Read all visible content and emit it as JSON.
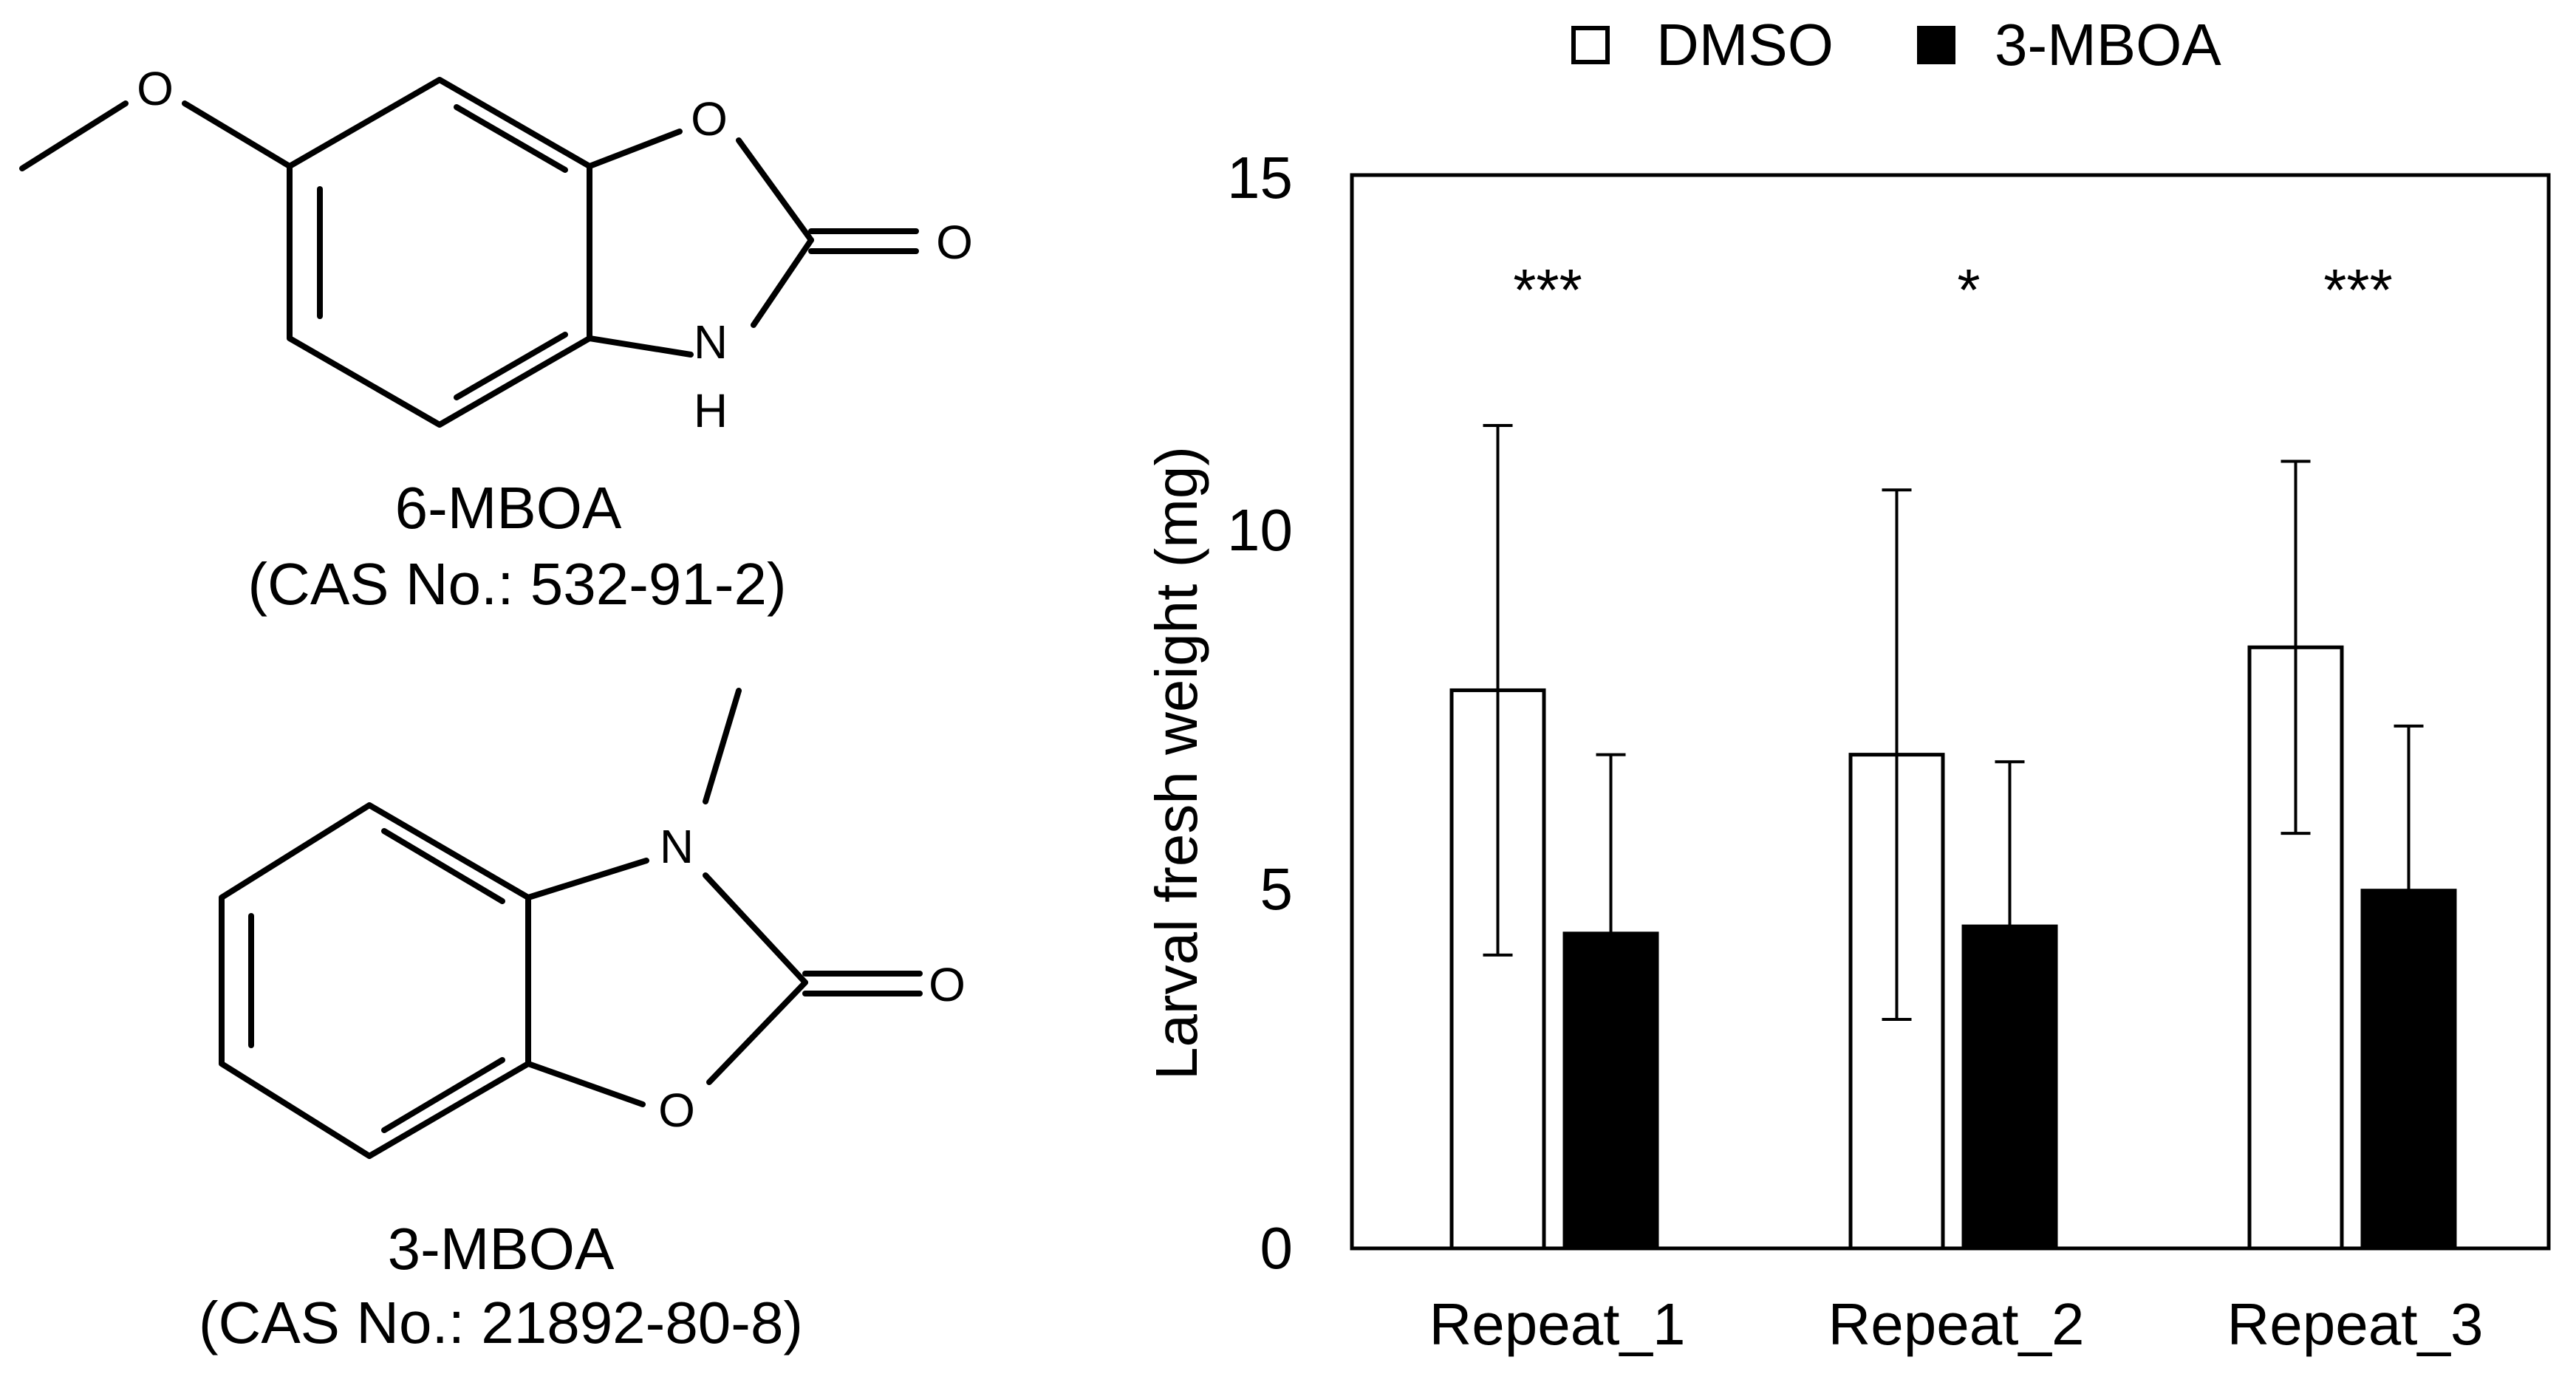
{
  "compounds": [
    {
      "name": "6-MBOA",
      "cas": "(CAS No.: 532-91-2)",
      "atoms": {
        "o_methoxy": "O",
        "o_ring": "O",
        "o_carbonyl": "O",
        "n": "N",
        "h": "H"
      }
    },
    {
      "name": "3-MBOA",
      "cas": "(CAS No.: 21892-80-8)",
      "atoms": {
        "n": "N",
        "o_ring": "O",
        "o_carbonyl": "O"
      }
    }
  ],
  "colors": {
    "dmso": "#ffffff",
    "mboa": "#000000",
    "stroke": "#000000"
  },
  "chart_data": {
    "type": "bar",
    "categories": [
      "Repeat_1",
      "Repeat_2",
      "Repeat_3"
    ],
    "series": [
      {
        "name": "DMSO",
        "values": [
          7.8,
          6.9,
          8.4
        ],
        "errors": [
          3.7,
          3.7,
          2.6
        ]
      },
      {
        "name": "3-MBOA",
        "values": [
          4.4,
          4.5,
          5.0
        ],
        "errors": [
          2.5,
          2.3,
          2.3
        ]
      }
    ],
    "significance": [
      "***",
      "*",
      "***"
    ],
    "ylabel": "Larval fresh weight (mg)",
    "ylim": [
      0,
      15
    ],
    "yticks": [
      0,
      5,
      10,
      15
    ],
    "legend_position": "top",
    "grid": false
  }
}
